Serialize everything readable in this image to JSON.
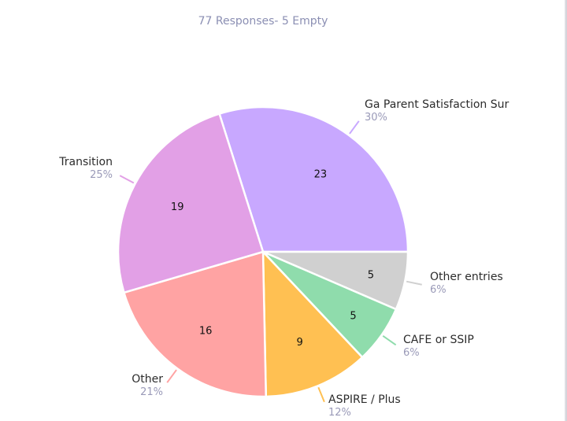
{
  "header": {
    "subtitle": "77 Responses- 5 Empty"
  },
  "chart_data": {
    "type": "pie",
    "subtitle": "77 Responses- 5 Empty",
    "slices": [
      {
        "label": "Ga Parent Satisfaction Sur",
        "value": 23,
        "percent": "30%",
        "color": "#c8a8ff"
      },
      {
        "label": "Other entries",
        "value": 5,
        "percent": "6%",
        "color": "#d0d0d0"
      },
      {
        "label": "CAFE or SSIP",
        "value": 5,
        "percent": "6%",
        "color": "#8fdcac"
      },
      {
        "label": "ASPIRE / Plus",
        "value": 9,
        "percent": "12%",
        "color": "#ffc052"
      },
      {
        "label": "Other",
        "value": 16,
        "percent": "21%",
        "color": "#ffa3a3"
      },
      {
        "label": "Transition",
        "value": 19,
        "percent": "25%",
        "color": "#e2a0e6"
      }
    ]
  }
}
